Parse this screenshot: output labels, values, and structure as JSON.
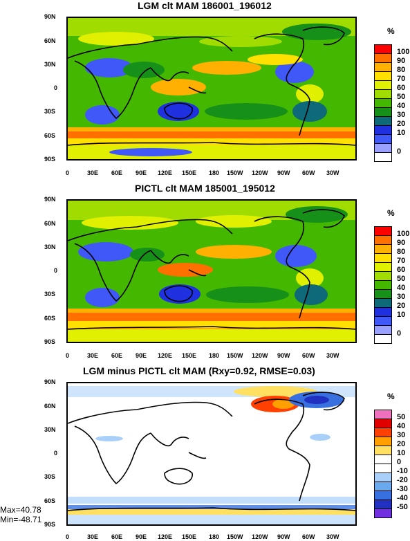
{
  "panels": [
    {
      "title": "LGM clt MAM 186001_196012",
      "unit": "%",
      "colorbar": {
        "labels": [
          "100",
          "90",
          "80",
          "70",
          "60",
          "50",
          "40",
          "30",
          "20",
          "10",
          "0"
        ],
        "colors": [
          "#ff0000",
          "#ff7000",
          "#ffb000",
          "#ffe000",
          "#e0f000",
          "#a0dc00",
          "#44b800",
          "#169018",
          "#0e6a78",
          "#1e30e0",
          "#4058f8",
          "#9aa0ff",
          "#ffffff"
        ]
      }
    },
    {
      "title": "PICTL clt MAM 185001_195012",
      "unit": "%",
      "colorbar": {
        "labels": [
          "100",
          "90",
          "80",
          "70",
          "60",
          "50",
          "40",
          "30",
          "20",
          "10",
          "0"
        ],
        "colors": [
          "#ff0000",
          "#ff7000",
          "#ffb000",
          "#ffe000",
          "#e0f000",
          "#a0dc00",
          "#44b800",
          "#169018",
          "#0e6a78",
          "#1e30e0",
          "#4058f8",
          "#9aa0ff",
          "#ffffff"
        ]
      }
    },
    {
      "title": "LGM minus PICTL clt MAM (Rxy=0.92, RMSE=0.03)",
      "unit": "%",
      "colorbar": {
        "labels": [
          "50",
          "40",
          "30",
          "20",
          "10",
          "0",
          "-10",
          "-20",
          "-30",
          "-40",
          "-50"
        ],
        "colors": [
          "#f070c0",
          "#e00000",
          "#ff4000",
          "#ffa000",
          "#ffe060",
          "#ffffff",
          "#ffffff",
          "#a8d0f8",
          "#6aa8f0",
          "#3870e0",
          "#2030c0",
          "#7030e0"
        ]
      }
    }
  ],
  "lat_labels": [
    "90N",
    "60N",
    "30N",
    "0",
    "30S",
    "60S",
    "90S"
  ],
  "lon_labels": [
    "0",
    "30E",
    "60E",
    "90E",
    "120E",
    "150E",
    "180",
    "150W",
    "120W",
    "90W",
    "60W",
    "30W"
  ],
  "stats": {
    "max": "Max=40.78",
    "min": "Min=-48.71"
  }
}
